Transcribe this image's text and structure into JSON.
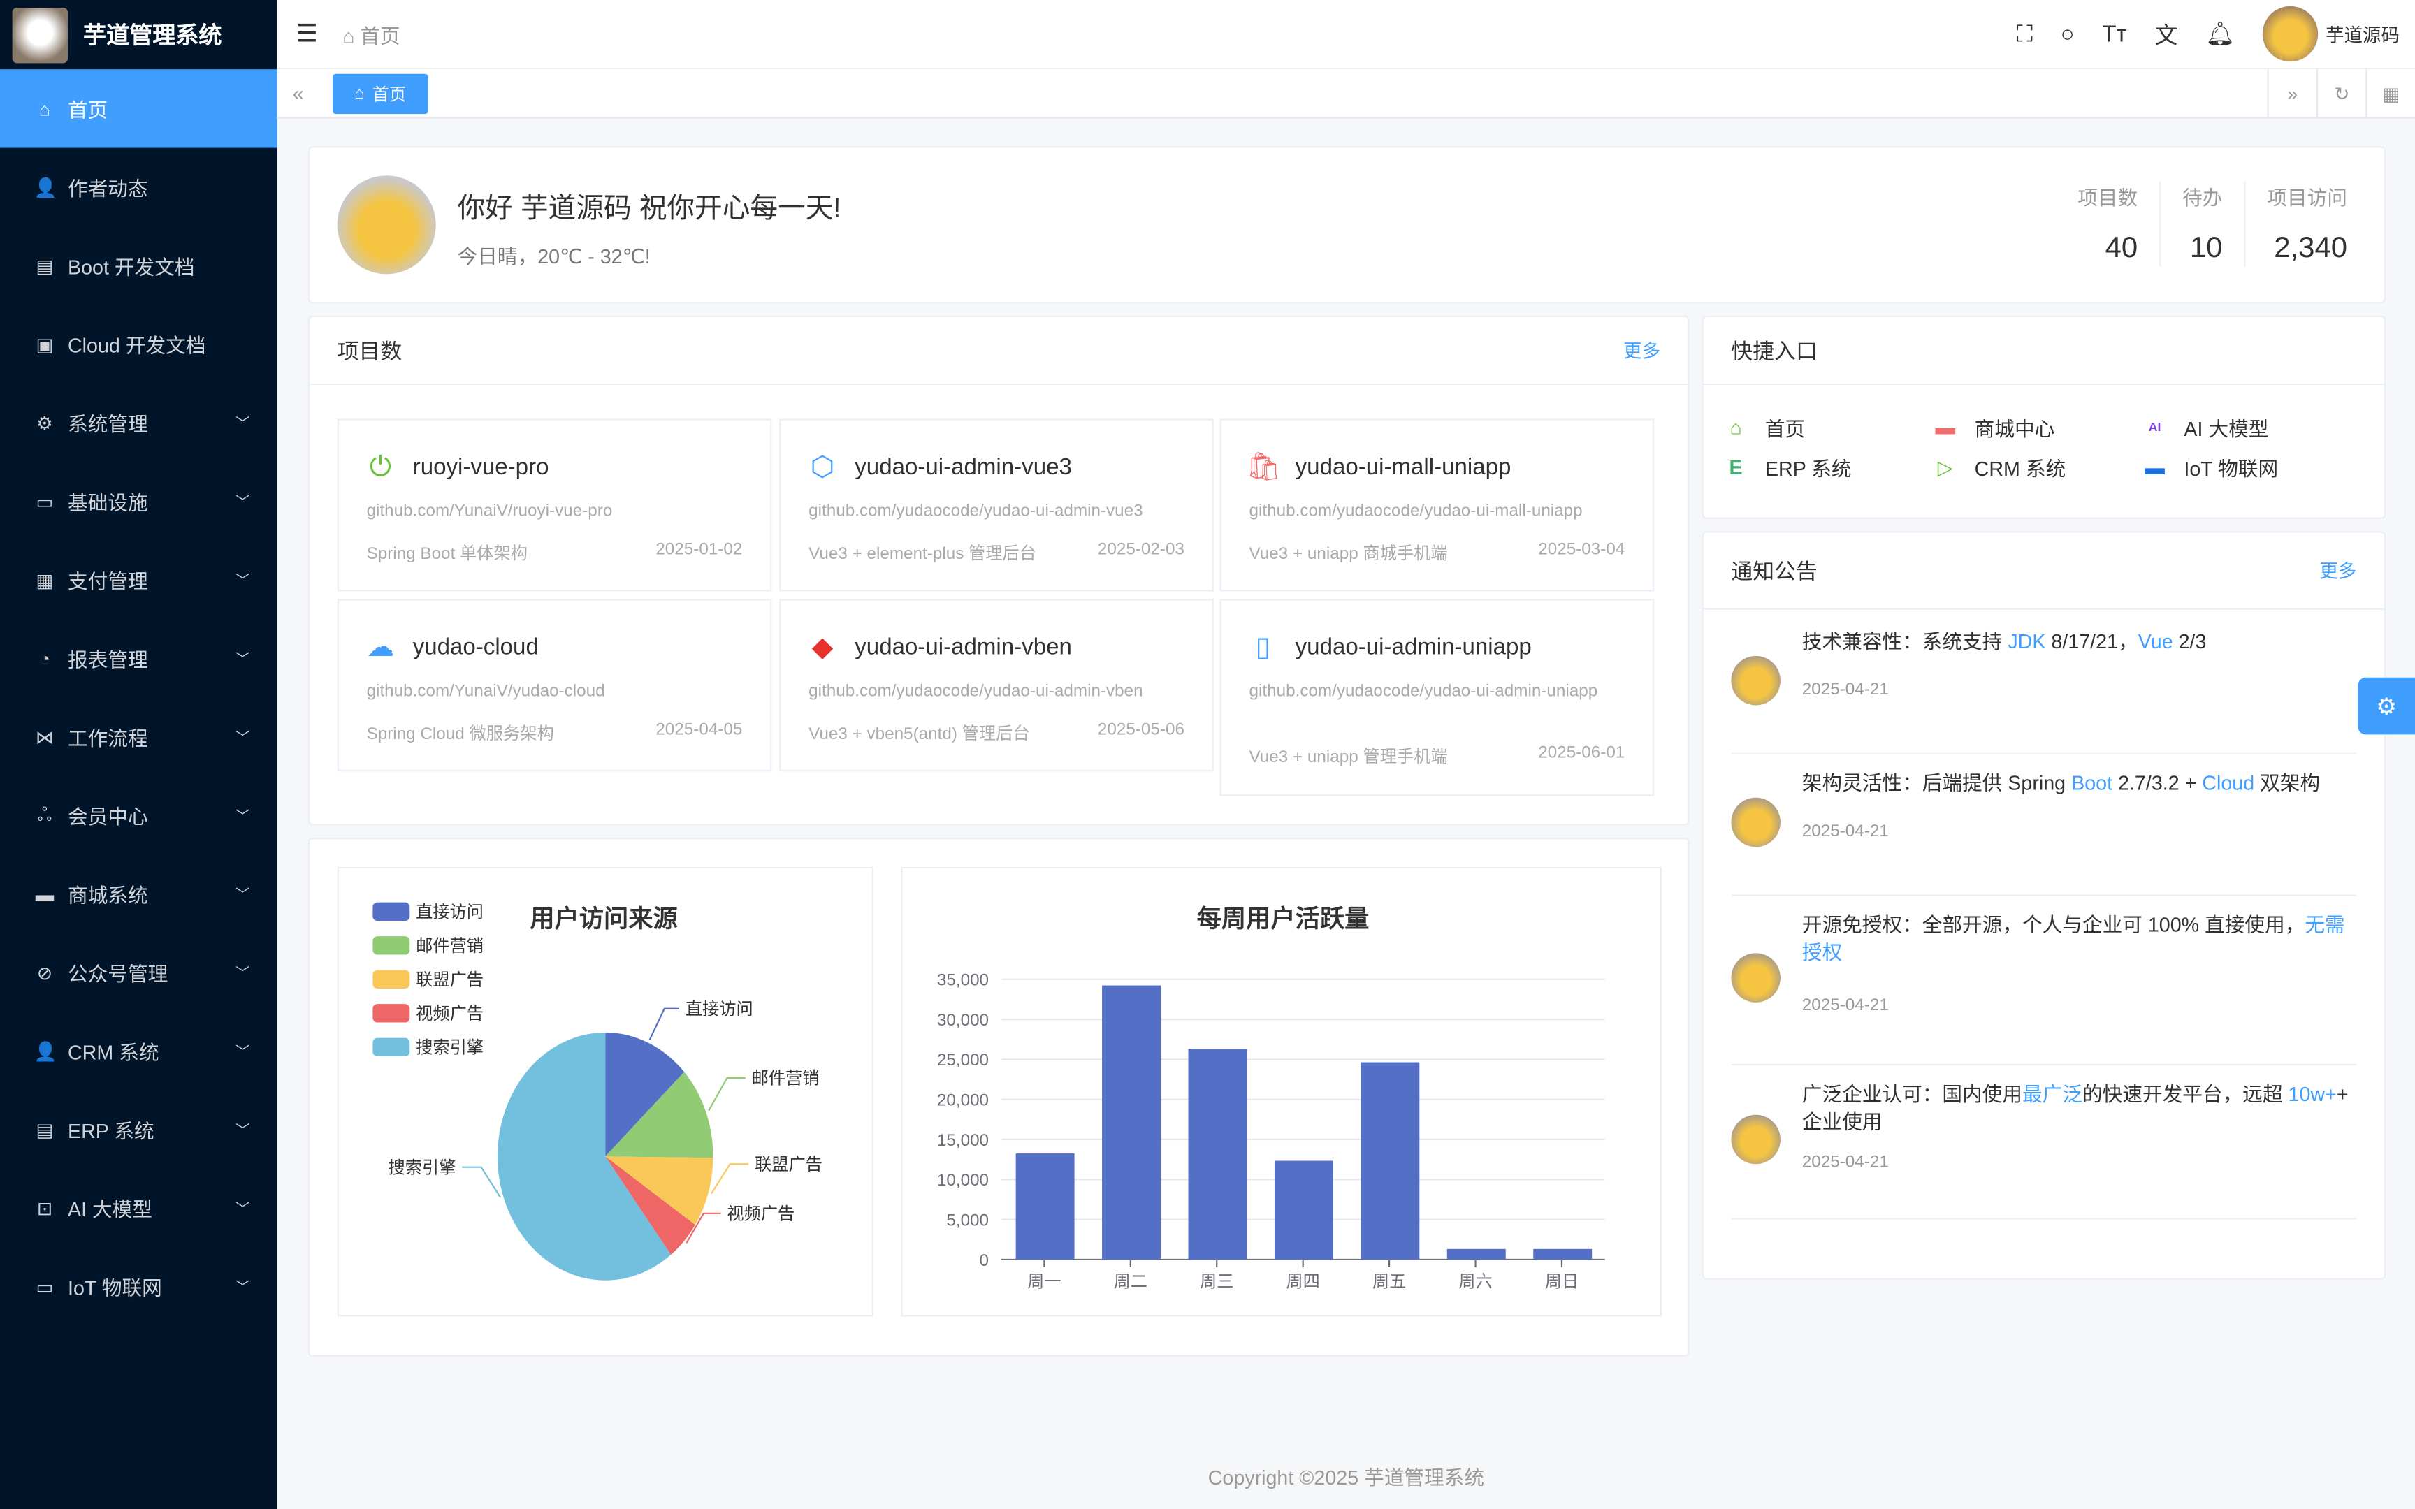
{
  "app": {
    "title": "芋道管理系统"
  },
  "sidebar": {
    "items": [
      {
        "label": "首页",
        "icon": "home-icon",
        "glyph": "⌂",
        "expand": false
      },
      {
        "label": "作者动态",
        "icon": "user-icon",
        "glyph": "👤",
        "expand": false
      },
      {
        "label": "Boot 开发文档",
        "icon": "document-icon",
        "glyph": "▤",
        "expand": false
      },
      {
        "label": "Cloud 开发文档",
        "icon": "document-copy-icon",
        "glyph": "▣",
        "expand": false
      },
      {
        "label": "系统管理",
        "icon": "gear-icon",
        "glyph": "⚙",
        "expand": true
      },
      {
        "label": "基础设施",
        "icon": "monitor-icon",
        "glyph": "▭",
        "expand": true
      },
      {
        "label": "支付管理",
        "icon": "wallet-icon",
        "glyph": "▦",
        "expand": true
      },
      {
        "label": "报表管理",
        "icon": "pie-icon",
        "glyph": "◔",
        "expand": true
      },
      {
        "label": "工作流程",
        "icon": "flow-icon",
        "glyph": "⋈",
        "expand": true
      },
      {
        "label": "会员中心",
        "icon": "members-icon",
        "glyph": "ஃ",
        "expand": true
      },
      {
        "label": "商城系统",
        "icon": "shop-icon",
        "glyph": "▬",
        "expand": true
      },
      {
        "label": "公众号管理",
        "icon": "compass-icon",
        "glyph": "⊘",
        "expand": true
      },
      {
        "label": "CRM 系统",
        "icon": "user-icon",
        "glyph": "👤",
        "expand": true
      },
      {
        "label": "ERP 系统",
        "icon": "store-icon",
        "glyph": "▤",
        "expand": true
      },
      {
        "label": "AI 大模型",
        "icon": "ai-icon",
        "glyph": "⊡",
        "expand": true
      },
      {
        "label": "IoT 物联网",
        "icon": "car-icon",
        "glyph": "▭",
        "expand": true
      }
    ]
  },
  "header": {
    "breadcrumb": "首页",
    "username": "芋道源码"
  },
  "tags": {
    "active": "首页"
  },
  "welcome": {
    "greeting": "你好 芋道源码 祝你开心每一天!",
    "weather": "今日晴，20℃ - 32℃!",
    "stats": [
      {
        "label": "项目数",
        "value": "40"
      },
      {
        "label": "待办",
        "value": "10"
      },
      {
        "label": "项目访问",
        "value": "2,340"
      }
    ]
  },
  "projects": {
    "title": "项目数",
    "more": "更多",
    "items": [
      {
        "name": "ruoyi-vue-pro",
        "url": "github.com/YunaiV/ruoyi-vue-pro",
        "desc": "Spring Boot 单体架构",
        "date": "2025-01-02",
        "glyph": "⏻",
        "color": "#67c23a"
      },
      {
        "name": "yudao-ui-admin-vue3",
        "url": "github.com/yudaocode/yudao-ui-admin-vue3",
        "desc": "Vue3 + element-plus 管理后台",
        "date": "2025-02-03",
        "glyph": "⬡",
        "color": "#409eff"
      },
      {
        "name": "yudao-ui-mall-uniapp",
        "url": "github.com/yudaocode/yudao-ui-mall-uniapp",
        "desc": "Vue3 + uniapp 商城手机端",
        "date": "2025-03-04",
        "glyph": "🛍",
        "color": "#f56c6c"
      },
      {
        "name": "yudao-cloud",
        "url": "github.com/YunaiV/yudao-cloud",
        "desc": "Spring Cloud 微服务架构",
        "date": "2025-04-05",
        "glyph": "☁",
        "color": "#409eff"
      },
      {
        "name": "yudao-ui-admin-vben",
        "url": "github.com/yudaocode/yudao-ui-admin-vben",
        "desc": "Vue3 + vben5(antd) 管理后台",
        "date": "2025-05-06",
        "glyph": "◆",
        "color": "#e6312f"
      },
      {
        "name": "yudao-ui-admin-uniapp",
        "url": "github.com/yudaocode/yudao-ui-admin-uniapp",
        "desc": "Vue3 + uniapp 管理手机端",
        "date": "2025-06-01",
        "glyph": "▯",
        "color": "#409eff"
      }
    ]
  },
  "quick": {
    "title": "快捷入口",
    "items": [
      {
        "label": "首页",
        "glyph": "⌂",
        "color": "#67c23a"
      },
      {
        "label": "商城中心",
        "glyph": "▬",
        "color": "#f56c6c"
      },
      {
        "label": "AI 大模型",
        "glyph": "AI",
        "color": "#7c3aed"
      },
      {
        "label": "ERP 系统",
        "glyph": "E",
        "color": "#3cb371"
      },
      {
        "label": "CRM 系统",
        "glyph": "▷",
        "color": "#67c23a"
      },
      {
        "label": "IoT 物联网",
        "glyph": "▬",
        "color": "#1e6fe0"
      }
    ]
  },
  "notices": {
    "title": "通知公告",
    "more": "更多",
    "items": [
      {
        "parts": [
          "技术兼容性：系统支持 ",
          "JDK",
          " 8/17/21，",
          "Vue",
          " 2/3"
        ],
        "date": "2025-04-21"
      },
      {
        "parts": [
          "架构灵活性：后端提供 Spring ",
          "Boot",
          " 2.7/3.2 + ",
          "Cloud",
          " 双架构"
        ],
        "date": "2025-04-21"
      },
      {
        "parts": [
          "开源免授权：全部开源，个人与企业可 100% 直接使用，",
          "无需授权",
          "",
          "",
          ""
        ],
        "date": "2025-04-21"
      },
      {
        "parts": [
          "广泛企业认可：国内使用",
          "最广泛",
          "的快速开发平台，远超 ",
          "10w+",
          "+ 企业使用"
        ],
        "date": "2025-04-21"
      }
    ]
  },
  "footer": {
    "copyright": "Copyright ©2025 芋道管理系统"
  },
  "chart_data": [
    {
      "type": "pie",
      "title": "用户访问来源",
      "legend": "top-left",
      "categories": [
        "直接访问",
        "邮件营销",
        "联盟广告",
        "视频广告",
        "搜索引擎"
      ],
      "values": [
        335,
        310,
        234,
        135,
        1548
      ],
      "colors": [
        "#5470c6",
        "#91cc75",
        "#fac858",
        "#ee6666",
        "#73c0de"
      ]
    },
    {
      "type": "bar",
      "title": "每周用户活跃量",
      "categories": [
        "周一",
        "周二",
        "周三",
        "周四",
        "周五",
        "周六",
        "周日"
      ],
      "values": [
        13253,
        34235,
        26321,
        12340,
        24643,
        1322,
        1324
      ],
      "ylim": [
        0,
        35000
      ],
      "yticks": [
        "0",
        "5,000",
        "10,000",
        "15,000",
        "20,000",
        "25,000",
        "30,000",
        "35,000"
      ],
      "grid": true,
      "color": "#5470c6"
    }
  ]
}
